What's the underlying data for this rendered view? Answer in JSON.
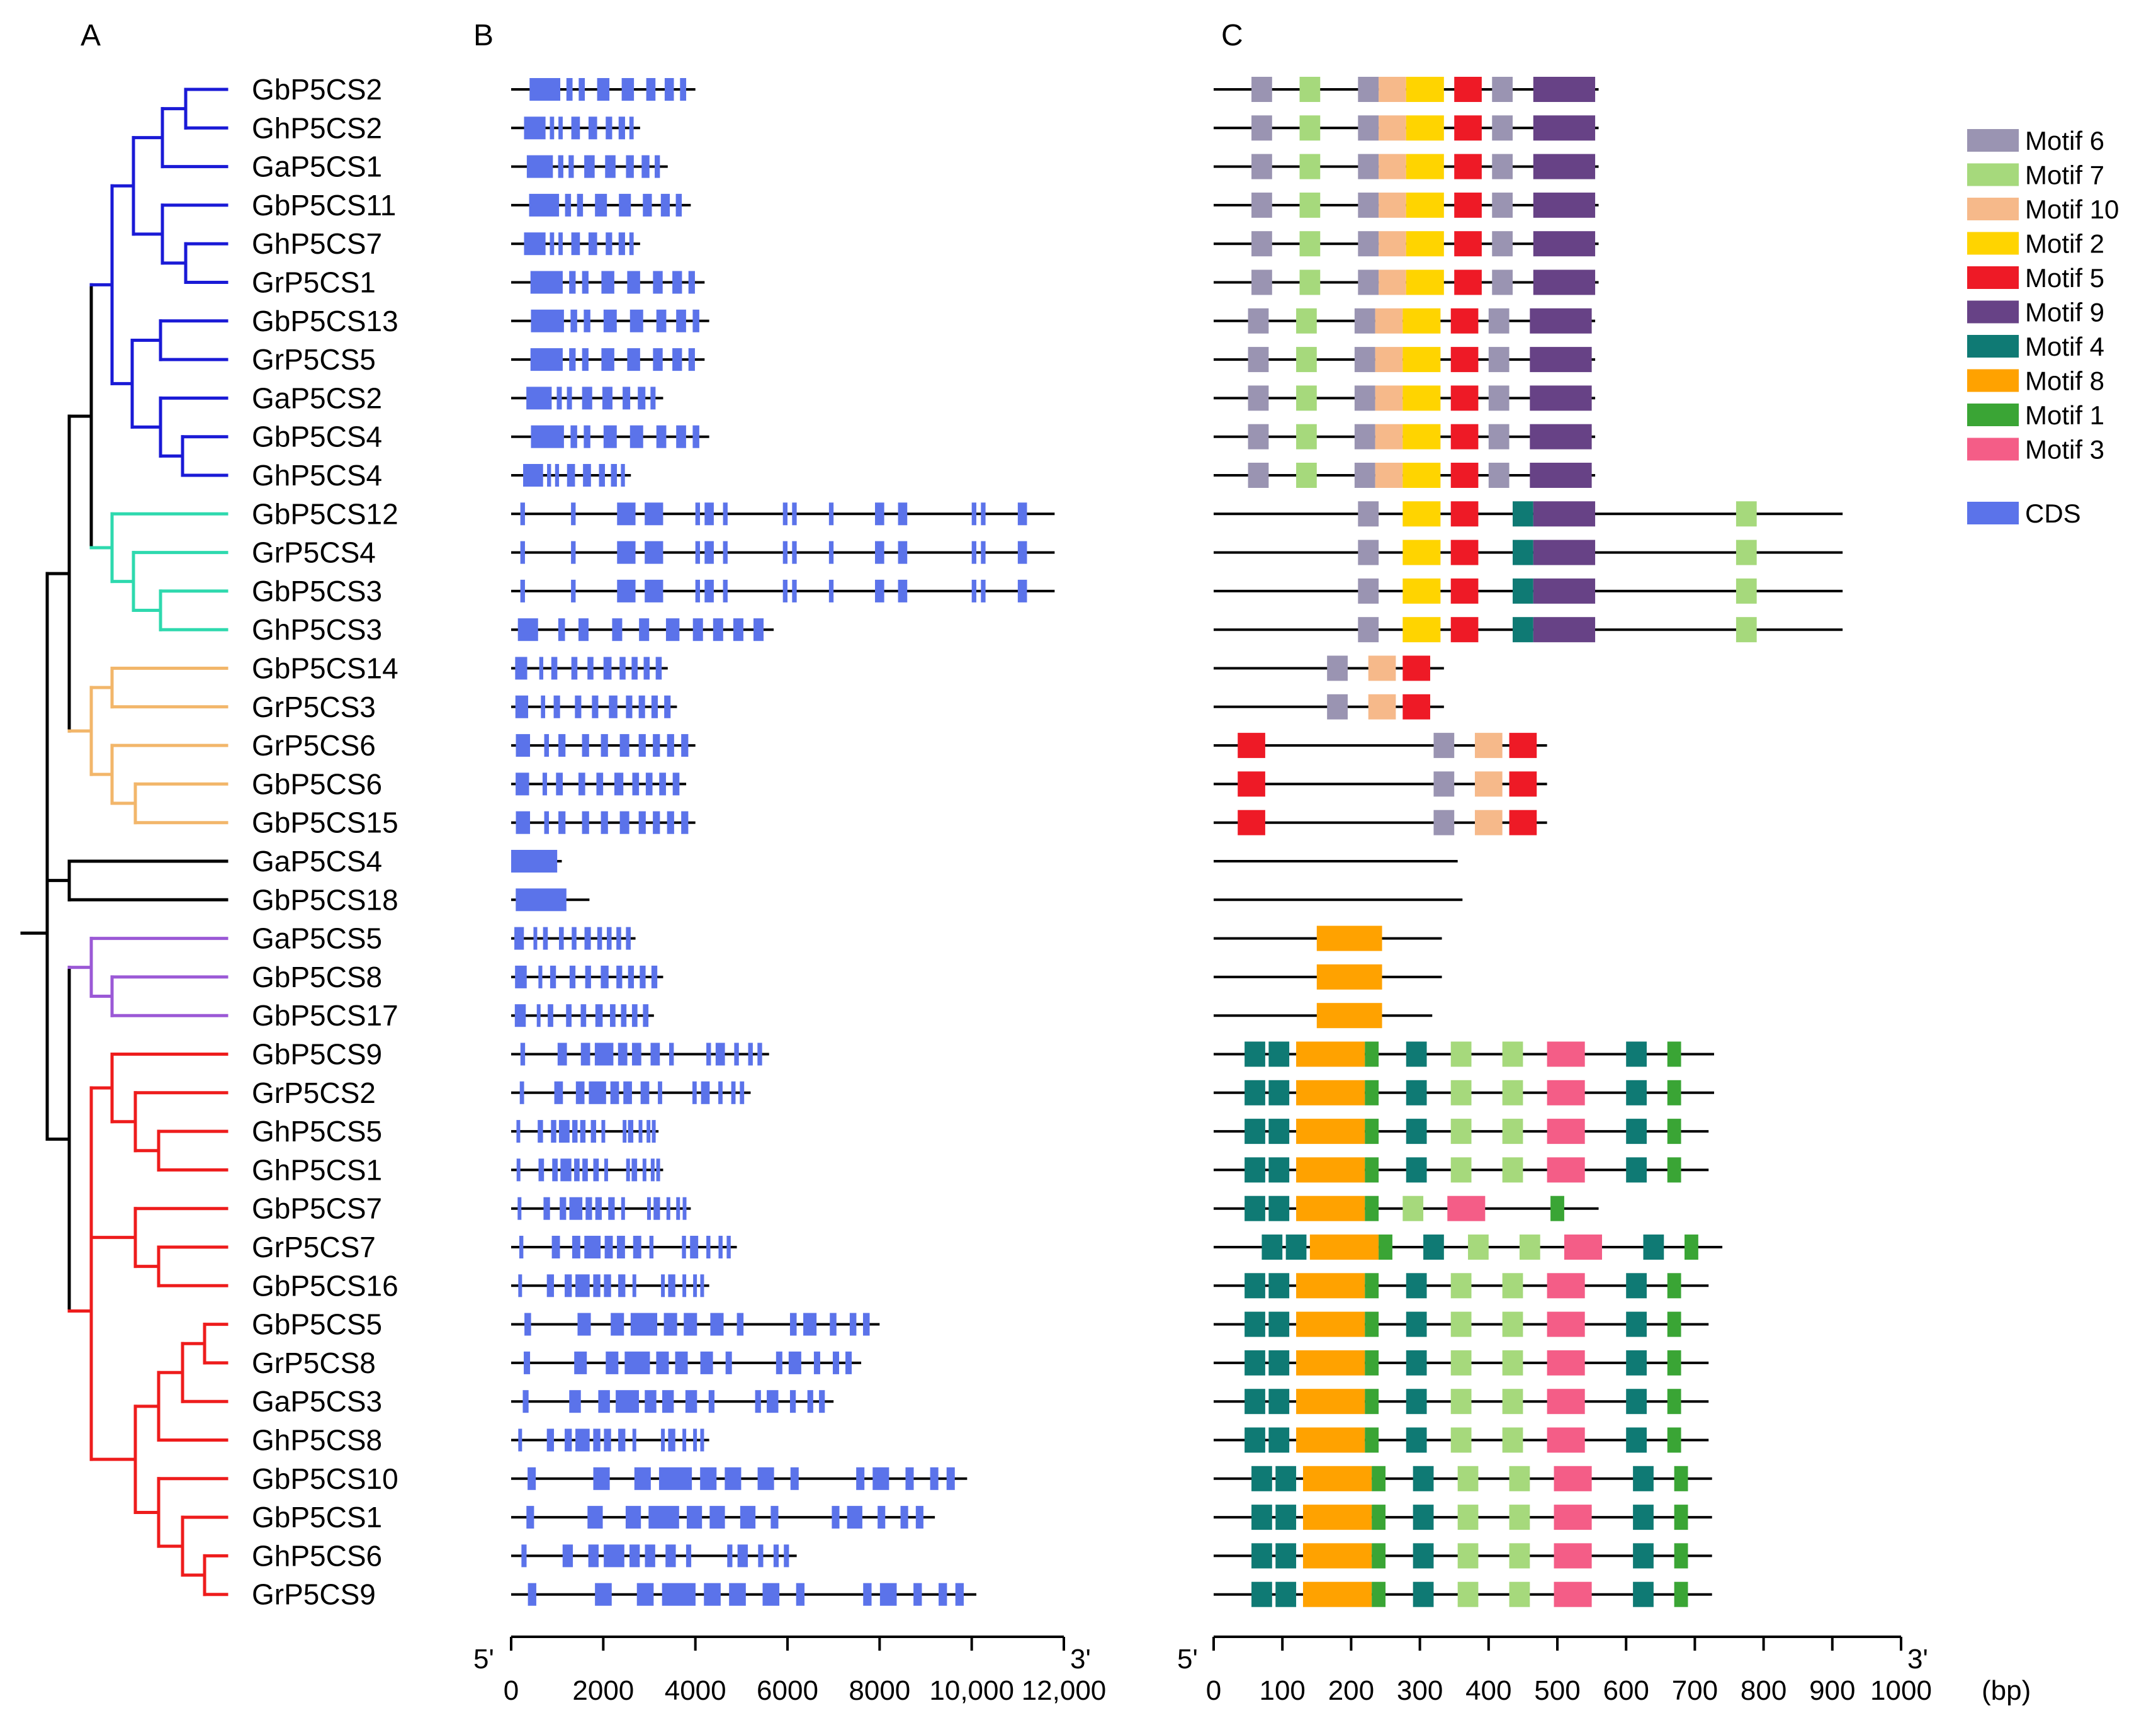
{
  "panels": {
    "a": "A",
    "b": "B",
    "c": "C"
  },
  "genes": [
    "GbP5CS2",
    "GhP5CS2",
    "GaP5CS1",
    "GbP5CS11",
    "GhP5CS7",
    "GrP5CS1",
    "GbP5CS13",
    "GrP5CS5",
    "GaP5CS2",
    "GbP5CS4",
    "GhP5CS4",
    "GbP5CS12",
    "GrP5CS4",
    "GbP5CS3",
    "GhP5CS3",
    "GbP5CS14",
    "GrP5CS3",
    "GrP5CS6",
    "GbP5CS6",
    "GbP5CS15",
    "GaP5CS4",
    "GbP5CS18",
    "GaP5CS5",
    "GbP5CS8",
    "GbP5CS17",
    "GbP5CS9",
    "GrP5CS2",
    "GhP5CS5",
    "GhP5CS1",
    "GbP5CS7",
    "GrP5CS7",
    "GbP5CS16",
    "GbP5CS5",
    "GrP5CS8",
    "GaP5CS3",
    "GhP5CS8",
    "GbP5CS10",
    "GbP5CS1",
    "GhP5CS6",
    "GrP5CS9"
  ],
  "clade_colors": {
    "blue": "#1a1ad6",
    "teal": "#2ed9ae",
    "orange": "#f2b66a",
    "purple": "#9b59d6",
    "red": "#ee1c1c",
    "black": "#000000"
  },
  "gene_lengths_bp": [
    4000,
    2800,
    3400,
    3900,
    2800,
    4200,
    4300,
    4200,
    3300,
    4300,
    2600,
    11800,
    11800,
    11800,
    5700,
    3400,
    3600,
    4000,
    3800,
    4000,
    1100,
    1700,
    2700,
    3300,
    3100,
    5600,
    5200,
    3200,
    3300,
    3900,
    4900,
    4300,
    8000,
    7600,
    7000,
    4300,
    9900,
    9200,
    6200,
    10100
  ],
  "gene_axis": {
    "start_label": "5'",
    "end_label": "3'",
    "ticks": [
      "0",
      "2000",
      "4000",
      "6000",
      "8000",
      "10,000",
      "12,000"
    ],
    "max": 12000
  },
  "motif_axis": {
    "start_label": "5'",
    "end_label": "3'",
    "ticks": [
      "0",
      "100",
      "200",
      "300",
      "400",
      "500",
      "600",
      "700",
      "800",
      "900",
      "1000"
    ],
    "unit_label": "(bp)",
    "max": 1000
  },
  "protein_lengths_aa": [
    560,
    560,
    560,
    560,
    560,
    560,
    555,
    555,
    555,
    555,
    555,
    915,
    915,
    915,
    915,
    335,
    335,
    485,
    485,
    485,
    355,
    362,
    332,
    332,
    318,
    728,
    728,
    720,
    720,
    560,
    740,
    720,
    720,
    720,
    720,
    720,
    725,
    725,
    725,
    725
  ],
  "legend": [
    {
      "id": "6",
      "label": "Motif 6",
      "color": "#9a94b2"
    },
    {
      "id": "7",
      "label": "Motif 7",
      "color": "#a6d97c"
    },
    {
      "id": "10",
      "label": "Motif 10",
      "color": "#f6b98a"
    },
    {
      "id": "2",
      "label": "Motif 2",
      "color": "#ffd400"
    },
    {
      "id": "5",
      "label": "Motif 5",
      "color": "#ee1a26"
    },
    {
      "id": "9",
      "label": "Motif 9",
      "color": "#674286"
    },
    {
      "id": "4",
      "label": "Motif 4",
      "color": "#0f7a74"
    },
    {
      "id": "8",
      "label": "Motif 8",
      "color": "#ffa200"
    },
    {
      "id": "1",
      "label": "Motif 1",
      "color": "#3aa535"
    },
    {
      "id": "3",
      "label": "Motif 3",
      "color": "#f45d87"
    },
    {
      "id": "CDS",
      "label": "CDS",
      "color": "#5b73ea"
    }
  ]
}
